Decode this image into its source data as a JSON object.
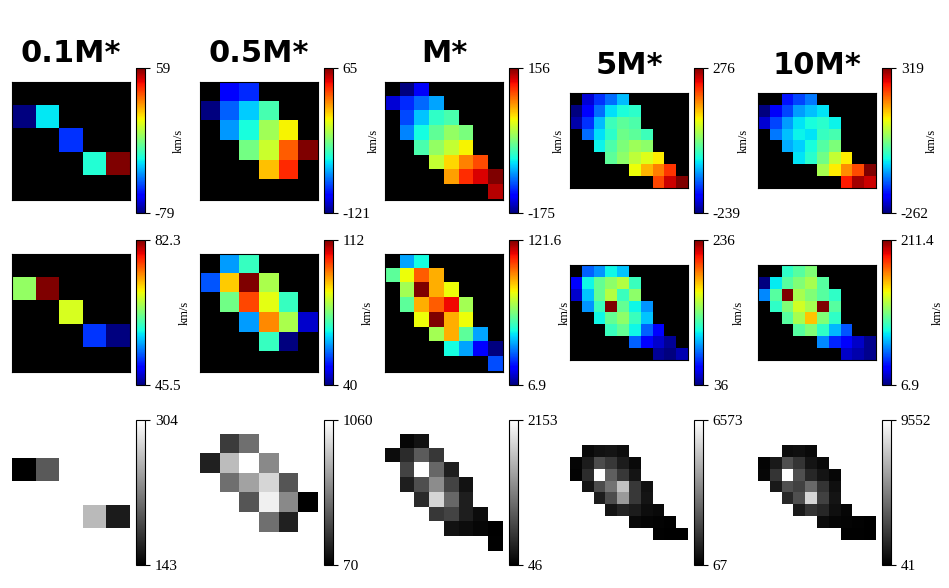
{
  "chart_data": [
    {
      "type": "heatmap",
      "title": "0.1M*",
      "color": "jet",
      "tick_labels": false,
      "colorbar": {
        "range": [
          -79,
          59
        ],
        "ticks": [
          -79,
          59
        ],
        "label": "km/s"
      },
      "cells": [
        [
          null,
          null,
          null,
          null,
          null
        ],
        [
          -79,
          -30,
          null,
          null,
          null
        ],
        [
          null,
          null,
          -55,
          null,
          null
        ],
        [
          null,
          null,
          null,
          -25,
          59
        ],
        [
          null,
          null,
          null,
          null,
          null
        ]
      ]
    },
    {
      "type": "heatmap",
      "title": "0.5M*",
      "color": "jet",
      "tick_labels": false,
      "colorbar": {
        "range": [
          -121,
          65
        ],
        "ticks": [
          -121,
          65
        ],
        "label": "km/s"
      },
      "cells": [
        [
          null,
          -100,
          -90,
          null,
          null,
          null
        ],
        [
          -121,
          -80,
          -60,
          -40,
          null,
          null
        ],
        [
          null,
          -70,
          -50,
          -20,
          0,
          null
        ],
        [
          null,
          null,
          -30,
          -10,
          30,
          65
        ],
        [
          null,
          null,
          null,
          10,
          40,
          null
        ],
        [
          null,
          null,
          null,
          null,
          null,
          null
        ]
      ]
    },
    {
      "type": "heatmap",
      "title": "M*",
      "color": "jet",
      "tick_labels": false,
      "colorbar": {
        "range": [
          -175,
          156
        ],
        "ticks": [
          -175,
          156
        ],
        "label": "km/s"
      },
      "cells": [
        [
          null,
          -175,
          -140,
          null,
          null,
          null,
          null,
          null
        ],
        [
          -150,
          -120,
          -100,
          -80,
          null,
          null,
          null,
          null
        ],
        [
          null,
          -110,
          -70,
          -40,
          -30,
          null,
          null,
          null
        ],
        [
          null,
          -90,
          -50,
          -20,
          0,
          -10,
          null,
          null
        ],
        [
          null,
          null,
          -30,
          0,
          20,
          40,
          null,
          null
        ],
        [
          null,
          null,
          null,
          20,
          50,
          80,
          100,
          null
        ],
        [
          null,
          null,
          null,
          null,
          70,
          110,
          130,
          156
        ],
        [
          null,
          null,
          null,
          null,
          null,
          null,
          null,
          140
        ]
      ]
    },
    {
      "type": "heatmap",
      "title": "5M*",
      "color": "jet",
      "tick_labels": false,
      "colorbar": {
        "range": [
          -239,
          276
        ],
        "ticks": [
          -239,
          276
        ],
        "label": "km/s"
      },
      "cells": [
        [
          null,
          -200,
          -150,
          -120,
          -80,
          null,
          null,
          null,
          null,
          null
        ],
        [
          -239,
          -180,
          -120,
          -60,
          -40,
          -30,
          null,
          null,
          null,
          null
        ],
        [
          -220,
          -150,
          -80,
          -20,
          0,
          -10,
          null,
          null,
          null,
          null
        ],
        [
          null,
          -120,
          -60,
          -30,
          10,
          0,
          -20,
          null,
          null,
          null
        ],
        [
          null,
          null,
          -50,
          -10,
          20,
          40,
          30,
          null,
          null,
          null
        ],
        [
          null,
          null,
          null,
          0,
          30,
          60,
          80,
          100,
          null,
          null
        ],
        [
          null,
          null,
          null,
          null,
          null,
          90,
          130,
          160,
          200,
          null
        ],
        [
          null,
          null,
          null,
          null,
          null,
          null,
          null,
          190,
          240,
          276
        ]
      ]
    },
    {
      "type": "heatmap",
      "title": "10M*",
      "color": "jet",
      "tick_labels": false,
      "colorbar": {
        "range": [
          -262,
          319
        ],
        "ticks": [
          -262,
          319
        ],
        "label": "km/s"
      },
      "cells": [
        [
          null,
          null,
          -180,
          -150,
          -120,
          null,
          null,
          null,
          null,
          null
        ],
        [
          -262,
          -200,
          -150,
          -100,
          -80,
          -60,
          null,
          null,
          null,
          null
        ],
        [
          -220,
          -150,
          -100,
          -60,
          -40,
          -30,
          -50,
          null,
          null,
          null
        ],
        [
          null,
          -120,
          -80,
          -50,
          -60,
          -20,
          -10,
          null,
          null,
          null
        ],
        [
          null,
          null,
          -90,
          -70,
          -40,
          0,
          30,
          null,
          null,
          null
        ],
        [
          null,
          null,
          null,
          -60,
          -30,
          20,
          80,
          120,
          null,
          null
        ],
        [
          null,
          null,
          null,
          null,
          null,
          60,
          120,
          180,
          220,
          319
        ],
        [
          null,
          null,
          null,
          null,
          null,
          null,
          null,
          250,
          300,
          280
        ]
      ]
    },
    {
      "type": "heatmap",
      "color": "jet",
      "tick_labels": false,
      "colorbar": {
        "range": [
          45.5,
          82.3
        ],
        "ticks": [
          45.5,
          82.3
        ],
        "label": "km/s"
      },
      "cells": [
        [
          null,
          null,
          null,
          null,
          null
        ],
        [
          65,
          82.3,
          null,
          null,
          null
        ],
        [
          null,
          null,
          68,
          null,
          null
        ],
        [
          null,
          null,
          null,
          52,
          45.5
        ],
        [
          null,
          null,
          null,
          null,
          null
        ]
      ]
    },
    {
      "type": "heatmap",
      "color": "jet",
      "tick_labels": false,
      "colorbar": {
        "range": [
          40,
          112
        ],
        "ticks": [
          40,
          112
        ],
        "label": "km/s"
      },
      "cells": [
        [
          null,
          60,
          70,
          null,
          null,
          null
        ],
        [
          55,
          90,
          112,
          80,
          null,
          null
        ],
        [
          null,
          75,
          100,
          85,
          70,
          null
        ],
        [
          null,
          null,
          60,
          95,
          80,
          45
        ],
        [
          null,
          null,
          null,
          70,
          40,
          null
        ],
        [
          null,
          null,
          null,
          null,
          null,
          null
        ]
      ]
    },
    {
      "type": "heatmap",
      "color": "jet",
      "tick_labels": false,
      "colorbar": {
        "range": [
          6.9,
          121.6
        ],
        "ticks": [
          6.9,
          121.6
        ],
        "label": "km/s"
      },
      "cells": [
        [
          null,
          40,
          50,
          null,
          null,
          null,
          null,
          null
        ],
        [
          60,
          80,
          100,
          90,
          null,
          null,
          null,
          null
        ],
        [
          null,
          70,
          121.6,
          90,
          80,
          null,
          null,
          null
        ],
        [
          null,
          60,
          90,
          100,
          110,
          70,
          null,
          null
        ],
        [
          null,
          null,
          80,
          121.6,
          90,
          80,
          null,
          null
        ],
        [
          null,
          null,
          null,
          70,
          90,
          60,
          40,
          null
        ],
        [
          null,
          null,
          null,
          null,
          50,
          40,
          20,
          6.9
        ],
        [
          null,
          null,
          null,
          null,
          null,
          null,
          null,
          30
        ]
      ]
    },
    {
      "type": "heatmap",
      "color": "jet",
      "tick_labels": false,
      "colorbar": {
        "range": [
          36,
          236
        ],
        "ticks": [
          36,
          236
        ],
        "label": "km/s"
      },
      "cells": [
        [
          null,
          80,
          90,
          110,
          100,
          null,
          null,
          null,
          null,
          null
        ],
        [
          60,
          110,
          130,
          140,
          150,
          120,
          null,
          null,
          null,
          null
        ],
        [
          50,
          100,
          130,
          150,
          120,
          140,
          null,
          null,
          null,
          null
        ],
        [
          null,
          90,
          120,
          236,
          130,
          110,
          90,
          null,
          null,
          null
        ],
        [
          null,
          null,
          110,
          130,
          140,
          120,
          100,
          null,
          null,
          null
        ],
        [
          null,
          null,
          null,
          120,
          130,
          110,
          80,
          60,
          null,
          null
        ],
        [
          null,
          null,
          null,
          null,
          null,
          80,
          60,
          50,
          40,
          null
        ],
        [
          null,
          null,
          null,
          null,
          null,
          null,
          null,
          40,
          36,
          45
        ]
      ]
    },
    {
      "type": "heatmap",
      "color": "jet",
      "tick_labels": false,
      "colorbar": {
        "range": [
          6.9,
          211.4
        ],
        "ticks": [
          6.9,
          211.4
        ],
        "label": "km/s"
      },
      "cells": [
        [
          null,
          null,
          90,
          100,
          110,
          null,
          null,
          null,
          null,
          null
        ],
        [
          6.9,
          80,
          100,
          110,
          120,
          100,
          null,
          null,
          null,
          null
        ],
        [
          60,
          100,
          211.4,
          120,
          110,
          100,
          90,
          null,
          null,
          null
        ],
        [
          null,
          90,
          110,
          130,
          120,
          211.4,
          100,
          null,
          null,
          null
        ],
        [
          null,
          null,
          100,
          120,
          150,
          110,
          90,
          null,
          null,
          null
        ],
        [
          null,
          null,
          null,
          100,
          110,
          90,
          70,
          50,
          null,
          null
        ],
        [
          null,
          null,
          null,
          null,
          null,
          60,
          40,
          30,
          20,
          10
        ],
        [
          null,
          null,
          null,
          null,
          null,
          null,
          null,
          20,
          15,
          10
        ]
      ]
    },
    {
      "type": "heatmap",
      "color": "gray",
      "tick_labels": false,
      "colorbar": {
        "range": [
          143,
          304
        ],
        "ticks": [
          143,
          304
        ]
      },
      "cells": [
        [
          null,
          null,
          null,
          null,
          null
        ],
        [
          143,
          200,
          null,
          null,
          null
        ],
        [
          null,
          null,
          304,
          null,
          null
        ],
        [
          null,
          null,
          null,
          260,
          160
        ],
        [
          null,
          null,
          null,
          null,
          null
        ]
      ]
    },
    {
      "type": "heatmap",
      "color": "gray",
      "tick_labels": false,
      "colorbar": {
        "range": [
          70,
          1060
        ],
        "ticks": [
          70,
          1060
        ]
      },
      "cells": [
        [
          null,
          300,
          500,
          null,
          null,
          null
        ],
        [
          200,
          800,
          1060,
          600,
          null,
          null
        ],
        [
          null,
          500,
          700,
          900,
          400,
          null
        ],
        [
          null,
          null,
          400,
          1000,
          600,
          70
        ],
        [
          null,
          null,
          null,
          500,
          200,
          null
        ],
        [
          null,
          null,
          null,
          null,
          null,
          null
        ]
      ]
    },
    {
      "type": "heatmap",
      "color": "gray",
      "tick_labels": false,
      "colorbar": {
        "range": [
          46,
          2153
        ],
        "ticks": [
          46,
          2153
        ]
      },
      "cells": [
        [
          null,
          100,
          200,
          null,
          null,
          null,
          null,
          null
        ],
        [
          150,
          400,
          800,
          500,
          null,
          null,
          null,
          null
        ],
        [
          null,
          600,
          2153,
          900,
          300,
          null,
          null,
          null
        ],
        [
          null,
          300,
          700,
          1200,
          600,
          200,
          null,
          null
        ],
        [
          null,
          null,
          400,
          1800,
          900,
          300,
          null,
          null
        ],
        [
          null,
          null,
          null,
          500,
          600,
          300,
          150,
          null
        ],
        [
          null,
          null,
          null,
          null,
          200,
          150,
          100,
          46
        ],
        [
          null,
          null,
          null,
          null,
          null,
          null,
          null,
          60
        ]
      ]
    },
    {
      "type": "heatmap",
      "color": "gray",
      "tick_labels": false,
      "colorbar": {
        "range": [
          67,
          6573
        ],
        "ticks": [
          67,
          6573
        ]
      },
      "cells": [
        [
          null,
          300,
          500,
          600,
          400,
          null,
          null,
          null,
          null,
          null
        ],
        [
          200,
          800,
          2000,
          1500,
          800,
          300,
          null,
          null,
          null,
          null
        ],
        [
          150,
          1200,
          6573,
          2500,
          1500,
          600,
          null,
          null,
          null,
          null
        ],
        [
          null,
          600,
          2000,
          3000,
          5000,
          1500,
          500,
          null,
          null,
          null
        ],
        [
          null,
          null,
          800,
          2000,
          4000,
          1500,
          600,
          null,
          null,
          null
        ],
        [
          null,
          null,
          null,
          600,
          1000,
          800,
          400,
          300,
          null,
          null
        ],
        [
          null,
          null,
          null,
          null,
          null,
          300,
          200,
          150,
          100,
          null
        ],
        [
          null,
          null,
          null,
          null,
          null,
          null,
          null,
          100,
          80,
          67
        ]
      ]
    },
    {
      "type": "heatmap",
      "color": "gray",
      "tick_labels": false,
      "colorbar": {
        "range": [
          41,
          9552
        ],
        "ticks": [
          41,
          9552
        ]
      },
      "cells": [
        [
          null,
          null,
          500,
          600,
          400,
          null,
          null,
          null,
          null,
          null
        ],
        [
          200,
          1000,
          3000,
          2000,
          800,
          400,
          null,
          null,
          null,
          null
        ],
        [
          300,
          2000,
          9552,
          3000,
          1500,
          800,
          300,
          null,
          null,
          null
        ],
        [
          null,
          1000,
          3000,
          2500,
          4000,
          2000,
          600,
          null,
          null,
          null
        ],
        [
          null,
          null,
          1500,
          3000,
          8000,
          2500,
          800,
          null,
          null,
          null
        ],
        [
          null,
          null,
          null,
          1000,
          2000,
          1500,
          600,
          300,
          null,
          null
        ],
        [
          null,
          null,
          null,
          null,
          null,
          500,
          300,
          200,
          150,
          41
        ],
        [
          null,
          null,
          null,
          null,
          null,
          null,
          null,
          100,
          80,
          60
        ]
      ]
    }
  ]
}
